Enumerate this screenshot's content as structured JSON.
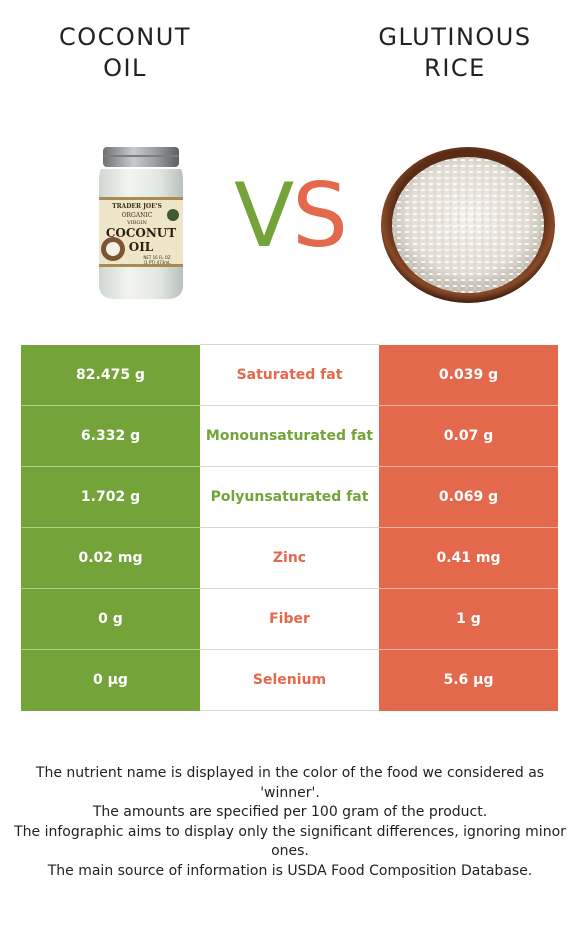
{
  "food_left": {
    "name_line1": "COCONUT",
    "name_line2": "OIL",
    "color": "#74a33a"
  },
  "food_right": {
    "name_line1": "GLUTINOUS",
    "name_line2": "RICE",
    "color": "#e4694c"
  },
  "vs": {
    "v": "V",
    "s": "S"
  },
  "rows": [
    {
      "nutrient": "Saturated fat",
      "left": "82.475 g",
      "right": "0.039 g",
      "winner": "right"
    },
    {
      "nutrient": "Monounsaturated fat",
      "left": "6.332 g",
      "right": "0.07 g",
      "winner": "left"
    },
    {
      "nutrient": "Polyunsaturated fat",
      "left": "1.702 g",
      "right": "0.069 g",
      "winner": "left"
    },
    {
      "nutrient": "Zinc",
      "left": "0.02 mg",
      "right": "0.41 mg",
      "winner": "right"
    },
    {
      "nutrient": "Fiber",
      "left": "0 g",
      "right": "1 g",
      "winner": "right"
    },
    {
      "nutrient": "Selenium",
      "left": "0 µg",
      "right": "5.6 µg",
      "winner": "right"
    }
  ],
  "jar_label": {
    "brand": "TRADER JOE'S",
    "line1": "ORGANIC",
    "line2": "VIRGIN",
    "line3": "COCONUT",
    "line4": "OIL",
    "line5": "NET 16 FL OZ",
    "line6": "(1 PT) 473mL"
  },
  "notes": [
    "The nutrient name is displayed in the color of the food we considered as 'winner'.",
    "The amounts are specified per 100 gram of the product.",
    "The infographic aims to display only the significant differences, ignoring minor ones.",
    "The main source of information is USDA Food Composition Database."
  ]
}
